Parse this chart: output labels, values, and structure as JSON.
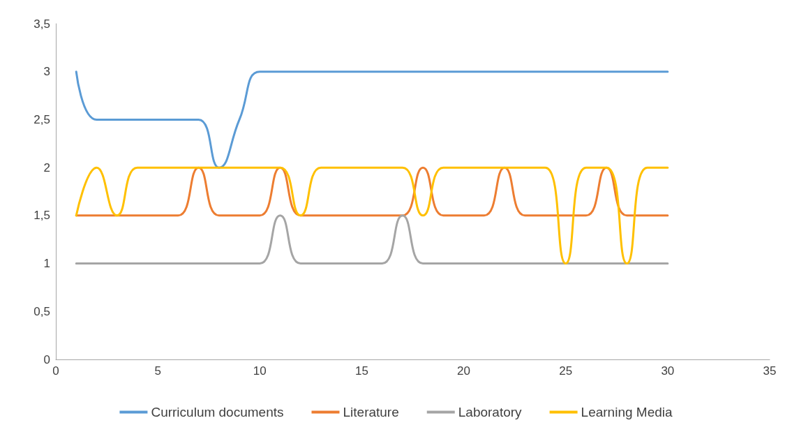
{
  "chart_data": {
    "type": "line",
    "x": [
      1,
      2,
      3,
      4,
      5,
      6,
      7,
      8,
      9,
      10,
      11,
      12,
      13,
      14,
      15,
      16,
      17,
      18,
      19,
      20,
      21,
      22,
      23,
      24,
      25,
      26,
      27,
      28,
      29,
      30
    ],
    "series": [
      {
        "name": "Curriculum documents",
        "color": "#5b9bd5",
        "values": [
          3,
          2.5,
          2.5,
          2.5,
          2.5,
          2.5,
          2.5,
          2,
          2.5,
          3,
          3,
          3,
          3,
          3,
          3,
          3,
          3,
          3,
          3,
          3,
          3,
          3,
          3,
          3,
          3,
          3,
          3,
          3,
          3,
          3
        ]
      },
      {
        "name": "Literature",
        "color": "#ed7d31",
        "values": [
          1.5,
          1.5,
          1.5,
          1.5,
          1.5,
          1.5,
          2,
          1.5,
          1.5,
          1.5,
          2,
          1.5,
          1.5,
          1.5,
          1.5,
          1.5,
          1.5,
          2,
          1.5,
          1.5,
          1.5,
          2,
          1.5,
          1.5,
          1.5,
          1.5,
          2,
          1.5,
          1.5,
          1.5
        ]
      },
      {
        "name": "Laboratory",
        "color": "#a5a5a5",
        "values": [
          1,
          1,
          1,
          1,
          1,
          1,
          1,
          1,
          1,
          1,
          1.5,
          1,
          1,
          1,
          1,
          1,
          1.5,
          1,
          1,
          1,
          1,
          1,
          1,
          1,
          1,
          1,
          1,
          1,
          1,
          1
        ]
      },
      {
        "name": "Learning Media",
        "color": "#ffc000",
        "values": [
          1.5,
          2,
          1.5,
          2,
          2,
          2,
          2,
          2,
          2,
          2,
          2,
          1.5,
          2,
          2,
          2,
          2,
          2,
          1.5,
          2,
          2,
          2,
          2,
          2,
          2,
          1,
          2,
          2,
          1,
          2,
          2
        ]
      }
    ],
    "xlim": [
      0,
      35
    ],
    "xticks": [
      0,
      5,
      10,
      15,
      20,
      25,
      30,
      35
    ],
    "ylim": [
      0,
      3.5
    ],
    "yticks": [
      0,
      {
        "value": 0.5,
        "label": "0,5"
      },
      1,
      {
        "value": 1.5,
        "label": "1,5"
      },
      2,
      {
        "value": 2.5,
        "label": "2,5"
      },
      3,
      {
        "value": 3.5,
        "label": "3,5"
      }
    ],
    "grid": false,
    "legend": "bottom",
    "marker": "none",
    "line_style": "solid"
  }
}
